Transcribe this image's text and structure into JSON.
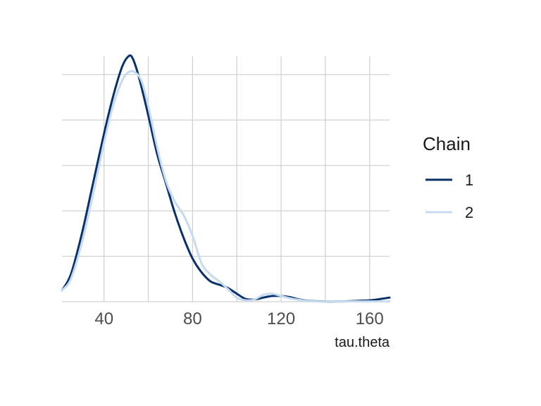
{
  "chart_data": {
    "type": "line",
    "title": "",
    "xlabel": "tau.theta",
    "ylabel": "",
    "xlim": [
      21,
      169
    ],
    "ylim": [
      0,
      1.08
    ],
    "x_ticks": [
      40,
      80,
      120,
      160
    ],
    "x_tick_labels": [
      "40",
      "80",
      "120",
      "160"
    ],
    "y_gridlines": [
      0,
      0.2,
      0.4,
      0.6,
      0.8,
      1.0
    ],
    "grid": true,
    "legend": {
      "title": "Chain",
      "position": "right",
      "entries": [
        {
          "label": "1",
          "color": "#08306b"
        },
        {
          "label": "2",
          "color": "#c6dbef"
        }
      ]
    },
    "series": [
      {
        "name": "1",
        "color": "#08306b",
        "x": [
          21,
          25,
          30,
          35,
          40,
          44,
          48,
          51,
          53,
          56,
          60,
          64,
          68,
          72,
          76,
          80,
          84,
          88,
          92,
          96,
          100,
          104,
          108,
          112,
          116,
          120,
          124,
          128,
          132,
          136,
          140,
          145,
          150,
          155,
          160,
          165,
          169
        ],
        "y": [
          0.05,
          0.12,
          0.3,
          0.52,
          0.74,
          0.9,
          1.03,
          1.08,
          1.07,
          0.98,
          0.82,
          0.65,
          0.52,
          0.39,
          0.28,
          0.19,
          0.13,
          0.09,
          0.075,
          0.06,
          0.035,
          0.012,
          0.01,
          0.018,
          0.025,
          0.025,
          0.02,
          0.01,
          0.004,
          0.002,
          0.001,
          0.001,
          0.002,
          0.004,
          0.006,
          0.012,
          0.018
        ]
      },
      {
        "name": "2",
        "color": "#c6dbef",
        "x": [
          21,
          25,
          30,
          35,
          40,
          44,
          48,
          51,
          54,
          57,
          60,
          64,
          68,
          72,
          76,
          80,
          84,
          88,
          92,
          96,
          100,
          104,
          108,
          112,
          116,
          120,
          124,
          128,
          132,
          136,
          140,
          145,
          150,
          155,
          160,
          165,
          169
        ],
        "y": [
          0.05,
          0.1,
          0.26,
          0.47,
          0.7,
          0.86,
          0.97,
          1.01,
          1.01,
          0.97,
          0.86,
          0.68,
          0.53,
          0.44,
          0.38,
          0.29,
          0.17,
          0.12,
          0.09,
          0.055,
          0.018,
          0.006,
          0.01,
          0.03,
          0.035,
          0.025,
          0.015,
          0.008,
          0.003,
          0.001,
          0.001,
          0.001,
          0.001,
          0.001,
          0.001,
          0.001,
          0.001
        ]
      }
    ]
  }
}
